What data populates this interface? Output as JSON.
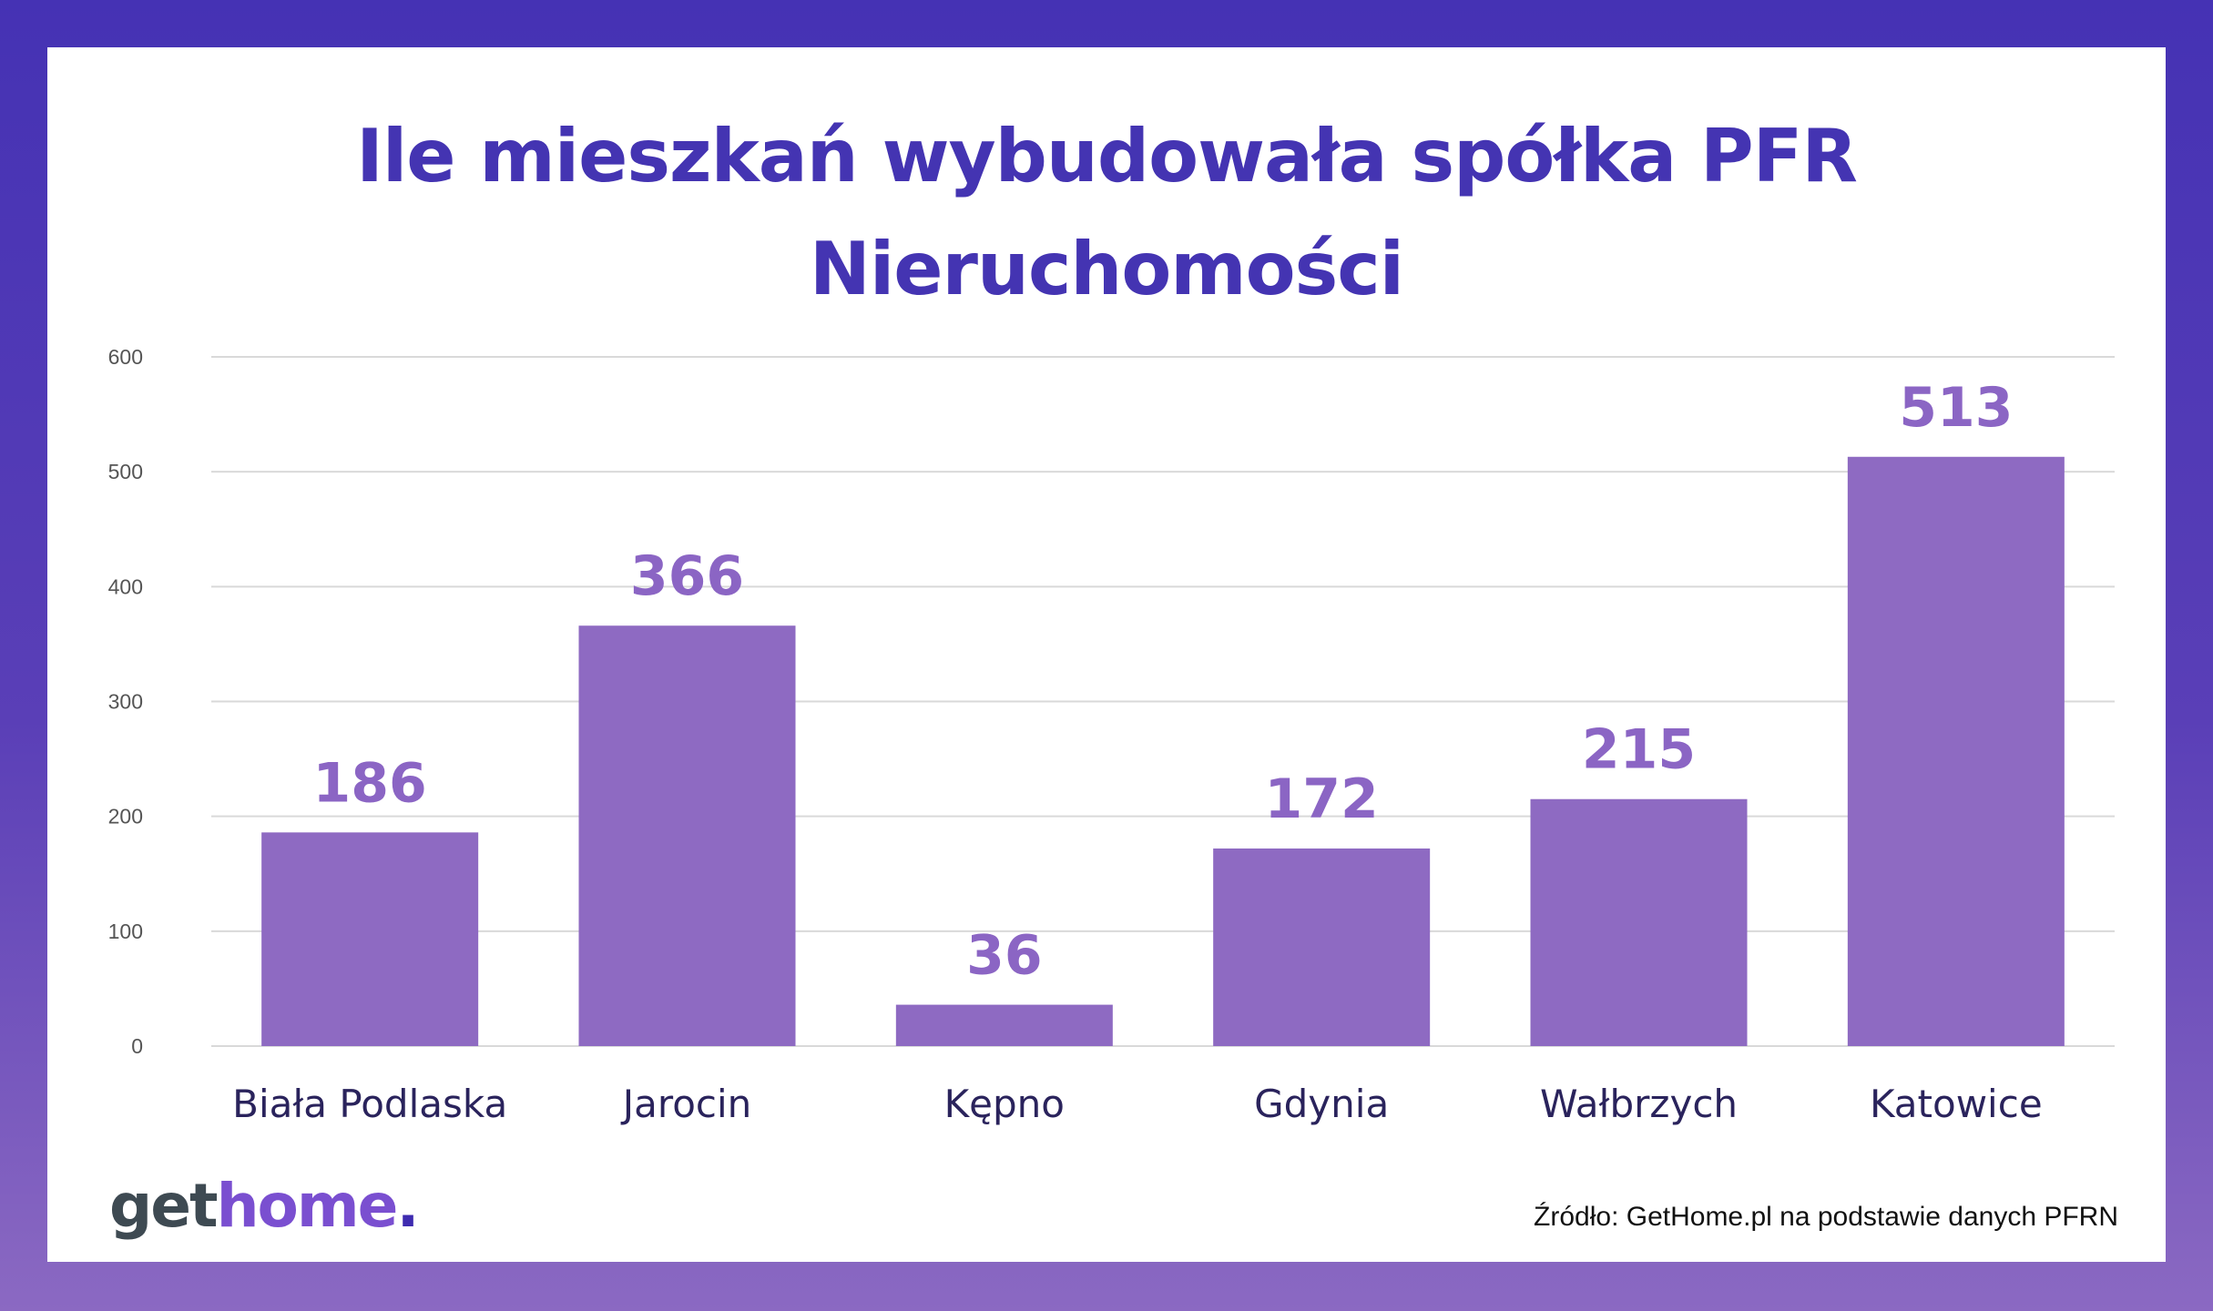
{
  "chart_data": {
    "type": "bar",
    "title": "Ile mieszkań wybudowała spółka PFR Nieruchomości",
    "title_lines": [
      "Ile mieszkań wybudowała spółka PFR",
      "Nieruchomości"
    ],
    "categories": [
      "Biała Podlaska",
      "Jarocin",
      "Kępno",
      "Gdynia",
      "Wałbrzych",
      "Katowice"
    ],
    "values": [
      186,
      366,
      36,
      172,
      215,
      513
    ],
    "data_labels": [
      "186",
      "366",
      "36",
      "172",
      "215",
      "513"
    ],
    "xlabel": "",
    "ylabel": "",
    "ylim": [
      0,
      600
    ],
    "yticks": [
      0,
      100,
      200,
      300,
      400,
      500,
      600
    ],
    "grid": true,
    "bar_color": "#8e6ac2",
    "data_label_color": "#8b65c4",
    "gridline_color": "#d9d9d9"
  },
  "branding": {
    "logo_get": "get",
    "logo_home": "home",
    "logo_dot": ".",
    "source": "Źródło: GetHome.pl na podstawie danych PFRN"
  },
  "colors": {
    "title": "#4434b2",
    "border_top": "#4532b4",
    "border_bottom": "#8b69c2"
  }
}
